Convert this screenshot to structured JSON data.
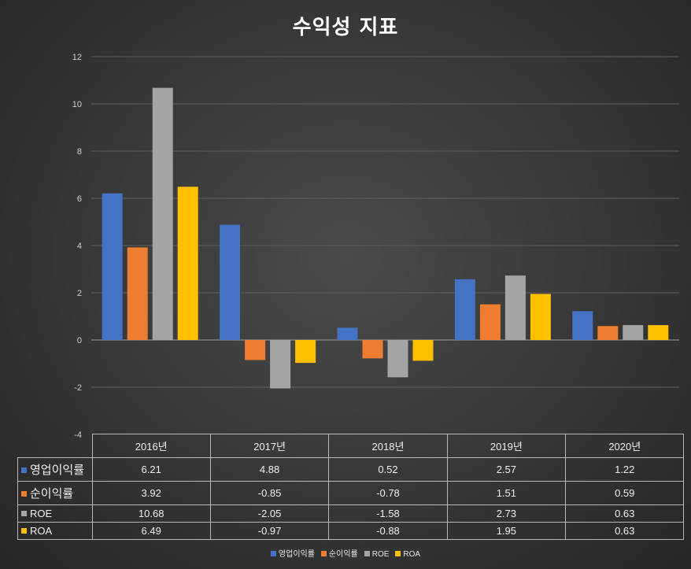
{
  "chart_data": {
    "type": "bar",
    "title": "수익성 지표",
    "categories": [
      "2016년",
      "2017년",
      "2018년",
      "2019년",
      "2020년"
    ],
    "series": [
      {
        "name": "영업이익률",
        "color": "#4472c4",
        "values": [
          6.21,
          4.88,
          0.52,
          2.57,
          1.22
        ],
        "labels": [
          "6.21",
          "4.88",
          "0.52",
          "2.57",
          "1.22"
        ]
      },
      {
        "name": "순이익률",
        "color": "#ed7d31",
        "values": [
          3.92,
          -0.85,
          -0.78,
          1.51,
          0.59
        ],
        "labels": [
          "3.92",
          "-0.85",
          "-0.78",
          "1.51",
          "0.59"
        ]
      },
      {
        "name": "ROE",
        "color": "#a5a5a5",
        "values": [
          10.68,
          -2.05,
          -1.58,
          2.73,
          0.63
        ],
        "labels": [
          "10.68",
          "-2.05",
          "-1.58",
          "2.73",
          "0.63"
        ]
      },
      {
        "name": "ROA",
        "color": "#ffc000",
        "values": [
          6.49,
          -0.97,
          -0.88,
          1.95,
          0.63
        ],
        "labels": [
          "6.49",
          "-0.97",
          "-0.88",
          "1.95",
          "0.63"
        ]
      }
    ],
    "ylim": [
      -4,
      12
    ],
    "yticks": [
      "12",
      "10",
      "8",
      "6",
      "4",
      "2",
      "0",
      "-2",
      "-4"
    ],
    "ytick_values": [
      12,
      10,
      8,
      6,
      4,
      2,
      0,
      -2,
      -4
    ],
    "grid": true,
    "legend_position": "bottom",
    "data_table": true
  }
}
